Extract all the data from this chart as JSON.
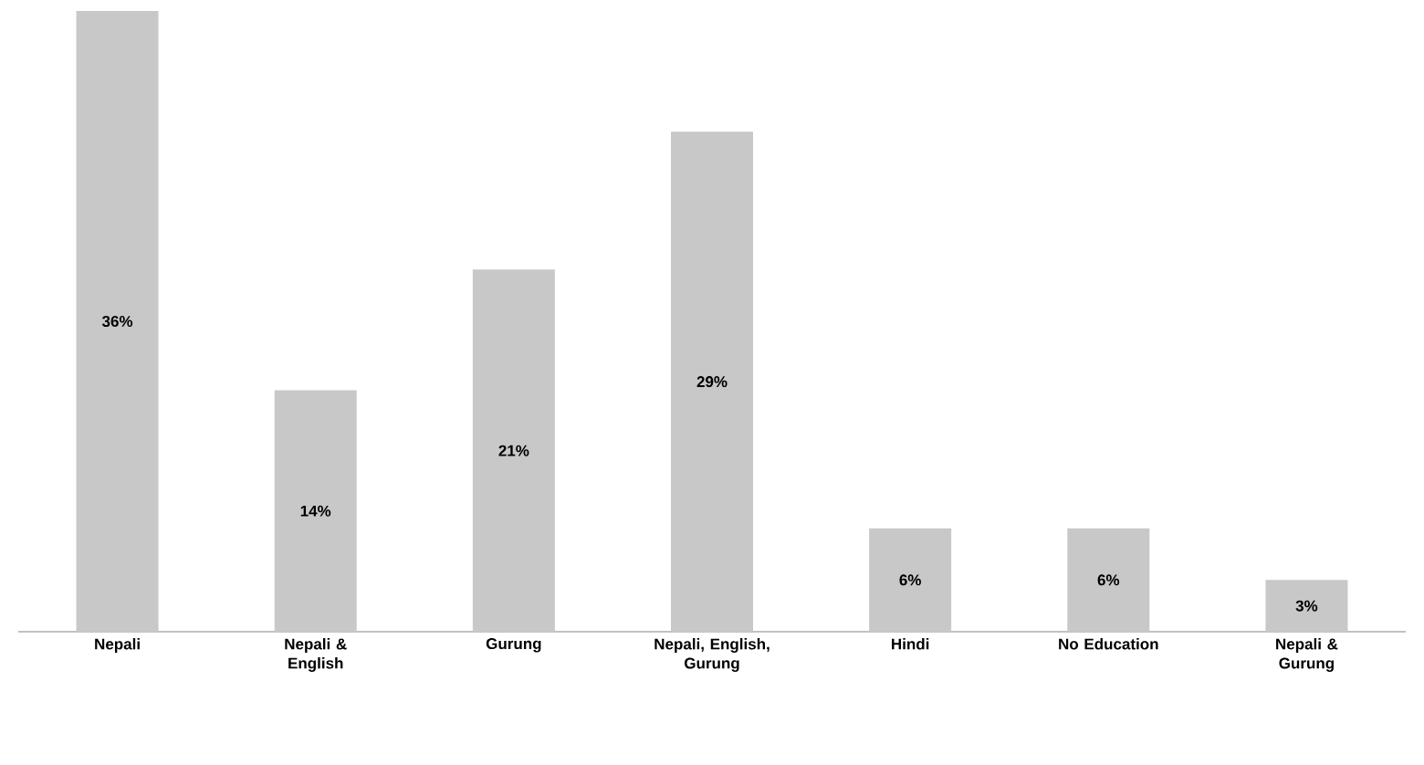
{
  "chart_data": {
    "type": "bar",
    "categories": [
      "Nepali",
      "Nepali & English",
      "Gurung",
      "Nepali, English, Gurung",
      "Hindi",
      "No Education",
      "Nepali & Gurung"
    ],
    "values": [
      36,
      14,
      21,
      29,
      6,
      6,
      3
    ],
    "value_labels": [
      "36%",
      "14%",
      "21%",
      "29%",
      "6%",
      "6%",
      "3%"
    ],
    "color": "#c8c8c8"
  }
}
